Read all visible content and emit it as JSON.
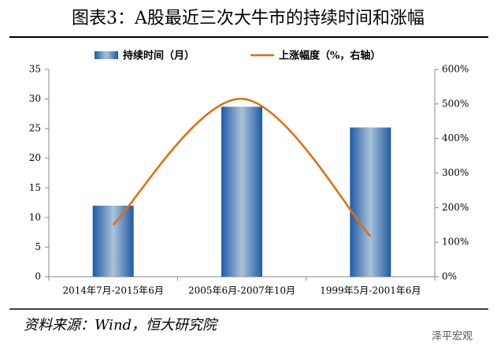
{
  "chart_data": {
    "type": "bar",
    "title": "图表3：A股最近三次大牛市的持续时间和涨幅",
    "categories": [
      "2014年7月-2015年6月",
      "2005年6月-2007年10月",
      "1999年5月-2001年6月"
    ],
    "series": [
      {
        "name": "持续时间（月）",
        "color": "#2e6db4",
        "values": [
          12,
          28.7,
          25.2
        ]
      },
      {
        "name": "上涨幅度（%，右轴）",
        "color": "#e46c0a",
        "type": "line",
        "axis": "y2",
        "values": [
          150,
          515,
          117
        ]
      }
    ],
    "ylim": [
      0,
      35
    ],
    "yticks": [
      0,
      5,
      10,
      15,
      20,
      25,
      30,
      35
    ],
    "y2lim": [
      0,
      600
    ],
    "y2ticks": [
      {
        "value": 0,
        "label": "0%"
      },
      {
        "value": 100,
        "label": "100%"
      },
      {
        "value": 200,
        "label": "200%"
      },
      {
        "value": 300,
        "label": "300%"
      },
      {
        "value": 400,
        "label": "400%"
      },
      {
        "value": 500,
        "label": "500%"
      },
      {
        "value": 600,
        "label": "600%"
      }
    ],
    "source": "资料来源：Wind，恒大研究院",
    "watermark": "泽平宏观"
  }
}
